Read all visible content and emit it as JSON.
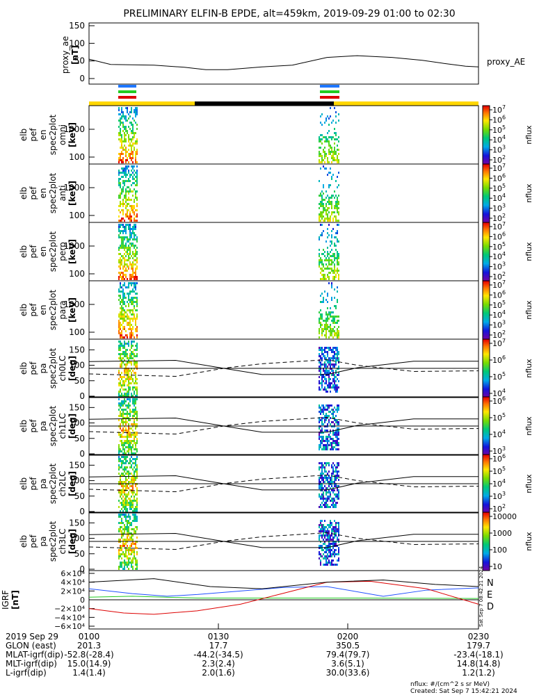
{
  "title": "PRELIMINARY ELFIN-B EPDE, alt=459km, 2019-09-29 01:00 to 02:30",
  "colors": {
    "yellow": "#ffd700",
    "black": "#000000",
    "blue": "#1f77ff",
    "green": "#22cc22",
    "red": "#dd0000"
  },
  "chart_data": [
    {
      "type": "line",
      "panel": "proxy_ae",
      "ylabel": [
        "proxy_ae",
        "[nT]"
      ],
      "yticks": [
        0,
        50,
        100,
        150
      ],
      "ylim": [
        0,
        150
      ],
      "series": [
        {
          "name": "proxy_AE",
          "x_min": [
            0,
            5,
            15,
            22,
            27,
            32,
            40,
            47,
            55,
            62,
            70,
            77,
            82,
            87,
            90
          ],
          "values": [
            55,
            40,
            38,
            32,
            25,
            25,
            33,
            38,
            60,
            65,
            60,
            52,
            43,
            35,
            33
          ]
        }
      ]
    },
    {
      "type": "heatmap",
      "panel": "omni",
      "ylabel": [
        "elb",
        "pef",
        "en",
        "spec2plot",
        "omni",
        "[keV]"
      ],
      "yticks": [
        "100",
        "1000"
      ],
      "scale": "log",
      "colorbar": {
        "label": "nflux",
        "ticks": [
          "10^7",
          "10^6",
          "10^5",
          "10^4",
          "10^3",
          "10^2"
        ]
      }
    },
    {
      "type": "heatmap",
      "panel": "anti",
      "ylabel": [
        "elb",
        "pef",
        "en",
        "spec2plot",
        "anti",
        "[keV]"
      ],
      "yticks": [
        "100",
        "1000"
      ],
      "scale": "log",
      "colorbar": {
        "label": "nflux",
        "ticks": [
          "10^7",
          "10^6",
          "10^5",
          "10^4",
          "10^3",
          "10^2"
        ]
      }
    },
    {
      "type": "heatmap",
      "panel": "perp",
      "ylabel": [
        "elb",
        "pef",
        "en",
        "spec2plot",
        "perp",
        "[keV]"
      ],
      "yticks": [
        "100",
        "1000"
      ],
      "scale": "log",
      "colorbar": {
        "label": "nflux",
        "ticks": [
          "10^7",
          "10^6",
          "10^5",
          "10^4",
          "10^3",
          "10^2"
        ]
      }
    },
    {
      "type": "heatmap",
      "panel": "para",
      "ylabel": [
        "elb",
        "pef",
        "en",
        "spec2plot",
        "para",
        "[keV]"
      ],
      "yticks": [
        "100",
        "1000"
      ],
      "scale": "log",
      "colorbar": {
        "label": "nflux",
        "ticks": [
          "10^7",
          "10^6",
          "10^5",
          "10^4",
          "10^3",
          "10^2"
        ]
      }
    },
    {
      "type": "heatmap",
      "panel": "ch0LC",
      "ylabel": [
        "elb",
        "pef",
        "pa",
        "spec2plot",
        "ch0LC",
        "[deg]"
      ],
      "yticks": [
        "0",
        "50",
        "100",
        "150"
      ],
      "ylim": [
        0,
        180
      ],
      "colorbar": {
        "label": "nflux",
        "ticks": [
          "10^7",
          "10^6",
          "10^5",
          "10^4"
        ]
      }
    },
    {
      "type": "heatmap",
      "panel": "ch1LC",
      "ylabel": [
        "elb",
        "pef",
        "pa",
        "spec2plot",
        "ch1LC",
        "[deg]"
      ],
      "yticks": [
        "0",
        "50",
        "100",
        "150"
      ],
      "ylim": [
        0,
        180
      ],
      "colorbar": {
        "label": "nflux",
        "ticks": [
          "10^6",
          "10^5",
          "10^4",
          "10^3"
        ]
      }
    },
    {
      "type": "heatmap",
      "panel": "ch2LC",
      "ylabel": [
        "elb",
        "pef",
        "pa",
        "spec2plot",
        "ch2LC",
        "[deg]"
      ],
      "yticks": [
        "0",
        "50",
        "100",
        "150"
      ],
      "ylim": [
        0,
        180
      ],
      "colorbar": {
        "label": "nflux",
        "ticks": [
          "10^6",
          "10^5",
          "10^4",
          "10^3",
          "10^2"
        ]
      }
    },
    {
      "type": "heatmap",
      "panel": "ch3LC",
      "ylabel": [
        "elb",
        "pef",
        "pa",
        "spec2plot",
        "ch3LC",
        "[deg]"
      ],
      "yticks": [
        "0",
        "50",
        "100",
        "150"
      ],
      "ylim": [
        0,
        180
      ],
      "colorbar": {
        "label": "nflux",
        "ticks": [
          "10000",
          "1000",
          "100",
          "10"
        ]
      }
    },
    {
      "type": "line",
      "panel": "IGRF",
      "ylabel": [
        "IGRF",
        "[nT]"
      ],
      "yticks": [
        "6×10⁴",
        "4×10⁴",
        "2×10⁴",
        "0",
        "−2×10⁴",
        "−4×10⁴",
        "−6×10⁴"
      ],
      "ylim": [
        -60000,
        60000
      ],
      "series": [
        {
          "name": "N"
        },
        {
          "name": "E"
        },
        {
          "name": "D"
        }
      ]
    }
  ],
  "annotations": {
    "proxy_ae_legend": "proxy_AE",
    "side_stamp": "Sat Sep  7 08:42:21 2024",
    "legend_N": "N",
    "legend_E": "E",
    "legend_D": "D"
  },
  "xaxis": {
    "rows": [
      {
        "label": "2019 Sep 29",
        "values": [
          "0100",
          "0130",
          "0200",
          "0230"
        ]
      },
      {
        "label": "GLON (east)",
        "values": [
          "201.3",
          "17.7",
          "350.5",
          "179.7"
        ]
      },
      {
        "label": "MLAT-igrf(dip)",
        "values": [
          "-52.8(-28.4)",
          "-44.2(-34.5)",
          "79.4(79.7)",
          "-23.4(-18.1)"
        ]
      },
      {
        "label": "MLT-igrf(dip)",
        "values": [
          "15.0(14.9)",
          "2.3(2.4)",
          "3.6(5.1)",
          "14.8(14.8)"
        ]
      },
      {
        "label": "L-igrf(dip)",
        "values": [
          "1.4(1.4)",
          "2.0(1.6)",
          "30.0(33.6)",
          "1.2(1.2)"
        ]
      }
    ]
  },
  "footer": {
    "units": "nflux: #/(cm^2 s sr MeV)",
    "created": "Created: Sat Sep  7 15:42:21 2024"
  }
}
